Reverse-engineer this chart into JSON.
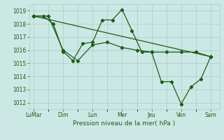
{
  "background_color": "#cce8e4",
  "grid_color": "#aaccc8",
  "line_color": "#1a5e1a",
  "xlabel": "Pression niveau de la mer( hPa )",
  "xtick_labels": [
    "LuMar",
    "Dim",
    "Lun",
    "Mer",
    "Jeu",
    "Ven",
    "Sam"
  ],
  "xtick_positions": [
    0,
    1,
    2,
    3,
    4,
    5,
    6
  ],
  "ylim": [
    1011.5,
    1019.5
  ],
  "yticks": [
    1012,
    1013,
    1014,
    1015,
    1016,
    1017,
    1018,
    1019
  ],
  "series": [
    {
      "x": [
        0,
        0.33,
        0.67,
        1,
        1.33,
        1.67,
        2,
        2.33,
        2.67,
        3,
        3.33,
        3.67,
        4,
        4.33,
        4.67,
        5,
        5.33,
        5.67,
        6
      ],
      "y": [
        1018.6,
        1018.6,
        1018.0,
        1015.9,
        1015.2,
        1016.5,
        1016.6,
        1018.3,
        1018.3,
        1019.1,
        1017.5,
        1015.85,
        1015.85,
        1013.6,
        1013.6,
        1011.9,
        1013.2,
        1013.8,
        1015.5
      ]
    },
    {
      "x": [
        0,
        6
      ],
      "y": [
        1018.6,
        1015.5
      ]
    },
    {
      "x": [
        0,
        0.5,
        1,
        1.5,
        2,
        2.5,
        3,
        3.5,
        4,
        4.5,
        5,
        5.5,
        6
      ],
      "y": [
        1018.6,
        1018.6,
        1016.0,
        1015.2,
        1016.4,
        1016.6,
        1016.2,
        1016.0,
        1015.85,
        1015.85,
        1015.85,
        1015.85,
        1015.5
      ]
    }
  ]
}
